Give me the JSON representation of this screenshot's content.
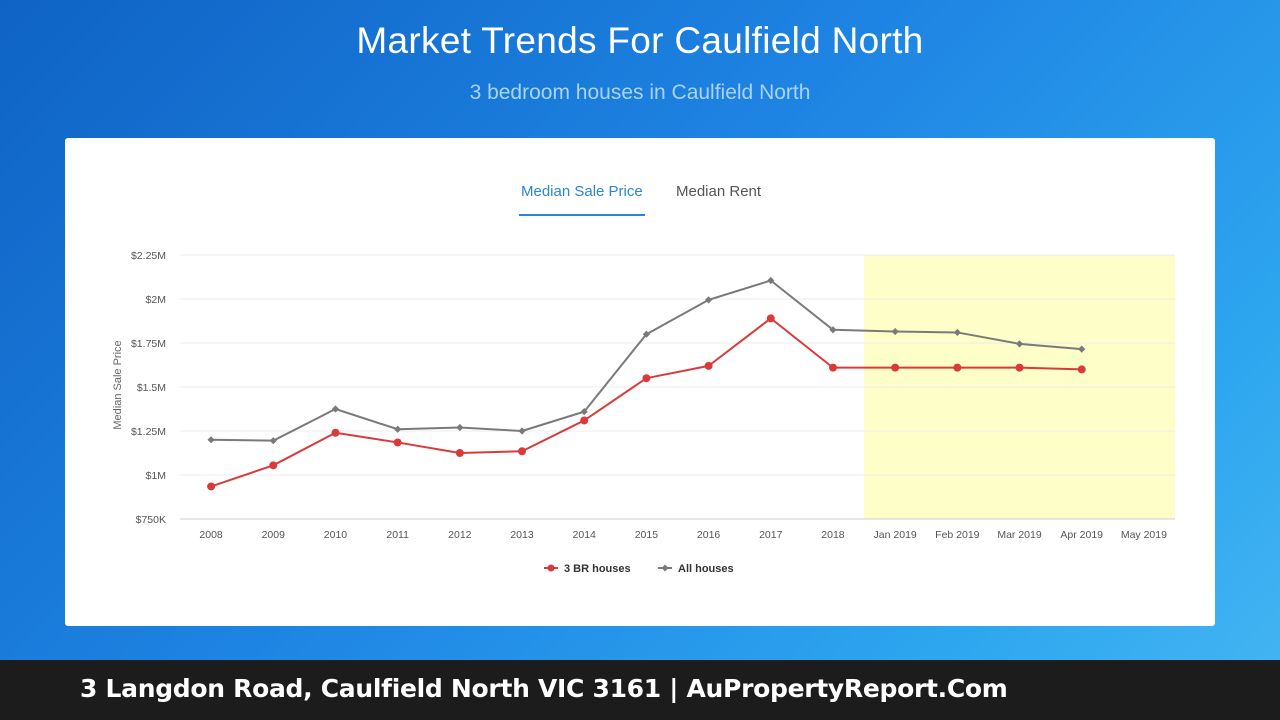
{
  "header": {
    "title": "Market Trends For Caulfield North",
    "subtitle": "3 bedroom houses in Caulfield North"
  },
  "tabs": [
    {
      "label": "Median Sale Price",
      "active": true
    },
    {
      "label": "Median Rent",
      "active": false
    }
  ],
  "chart_data": {
    "type": "line",
    "ylabel": "Median Sale Price",
    "xlabel": "",
    "categories": [
      "2008",
      "2009",
      "2010",
      "2011",
      "2012",
      "2013",
      "2014",
      "2015",
      "2016",
      "2017",
      "2018",
      "Jan 2019",
      "Feb 2019",
      "Mar 2019",
      "Apr 2019",
      "May 2019"
    ],
    "y_ticks": [
      {
        "value": 750000,
        "label": "$750K"
      },
      {
        "value": 1000000,
        "label": "$1M"
      },
      {
        "value": 1250000,
        "label": "$1.25M"
      },
      {
        "value": 1500000,
        "label": "$1.5M"
      },
      {
        "value": 1750000,
        "label": "$1.75M"
      },
      {
        "value": 2000000,
        "label": "$2M"
      },
      {
        "value": 2250000,
        "label": "$2.25M"
      }
    ],
    "ylim": [
      750000,
      2250000
    ],
    "highlight_band": {
      "from": "Jan 2019",
      "to": "May 2019",
      "color": "#fefec8"
    },
    "legend_position": "bottom-center",
    "grid": true,
    "series": [
      {
        "name": "3 BR houses",
        "color": "#d93b3b",
        "marker": "circle",
        "values": [
          935000,
          1055000,
          1240000,
          1185000,
          1125000,
          1135000,
          1310000,
          1550000,
          1620000,
          1890000,
          1610000,
          1610000,
          1610000,
          1610000,
          1600000,
          null
        ]
      },
      {
        "name": "All houses",
        "color": "#7a7a7a",
        "marker": "diamond",
        "values": [
          1200000,
          1195000,
          1375000,
          1260000,
          1270000,
          1250000,
          1360000,
          1800000,
          1995000,
          2105000,
          1825000,
          1815000,
          1810000,
          1745000,
          1715000,
          null
        ]
      }
    ]
  },
  "footer": {
    "text": "3 Langdon Road, Caulfield North VIC 3161 | AuPropertyReport.Com"
  }
}
